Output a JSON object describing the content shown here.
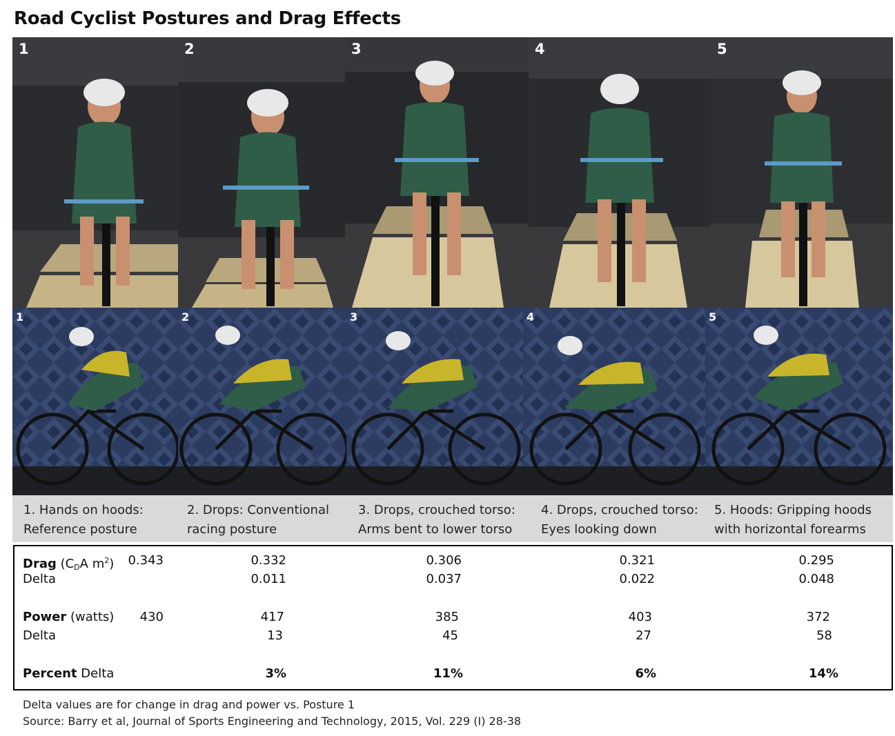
{
  "title": "Road Cyclist Postures and Drag Effects",
  "postures": [
    {
      "number": "1",
      "line1": "1. Hands on hoods:",
      "line2": "Reference posture",
      "drag": "0.343",
      "drag_delta": "",
      "power": "430",
      "power_delta": "",
      "percent_delta": ""
    },
    {
      "number": "2",
      "line1": "2. Drops: Conventional",
      "line2": "racing posture",
      "drag": "0.332",
      "drag_delta": "0.011",
      "power": "417",
      "power_delta": "13",
      "percent_delta": "3%"
    },
    {
      "number": "3",
      "line1": "3. Drops, crouched torso:",
      "line2": "Arms bent to lower torso",
      "drag": "0.306",
      "drag_delta": "0.037",
      "power": "385",
      "power_delta": "45",
      "percent_delta": "11%"
    },
    {
      "number": "4",
      "line1": "4. Drops, crouched torso:",
      "line2": "Eyes looking down",
      "drag": "0.321",
      "drag_delta": "0.022",
      "power": "403",
      "power_delta": "27",
      "percent_delta": "6%"
    },
    {
      "number": "5",
      "line1": "5. Hoods: Gripping hoods",
      "line2": "with horizontal forearms",
      "drag": "0.295",
      "drag_delta": "0.048",
      "power": "372",
      "power_delta": "58",
      "percent_delta": "14%"
    }
  ],
  "labels": {
    "drag_bold": "Drag",
    "drag_unit_open": " (C",
    "drag_unit_sub": "D",
    "drag_unit_mid": "A m",
    "drag_unit_sup": "2",
    "drag_unit_close": ")",
    "delta": "Delta",
    "power_bold": "Power",
    "power_unit": " (watts)",
    "percent_bold": "Percent",
    "percent_rest": " Delta"
  },
  "notes": {
    "line1": "Delta values are for change in drag and power vs. Posture 1",
    "line2": "Source: Barry et al, Journal of Sports Engineering and Technology, 2015, Vol. 229 (I) 28-38"
  },
  "colors": {
    "jersey_green": "#2f5d48",
    "jersey_yellow": "#c9b52a",
    "frame_blue": "#5b9bc8",
    "caption_band": "#d9d9d9"
  }
}
